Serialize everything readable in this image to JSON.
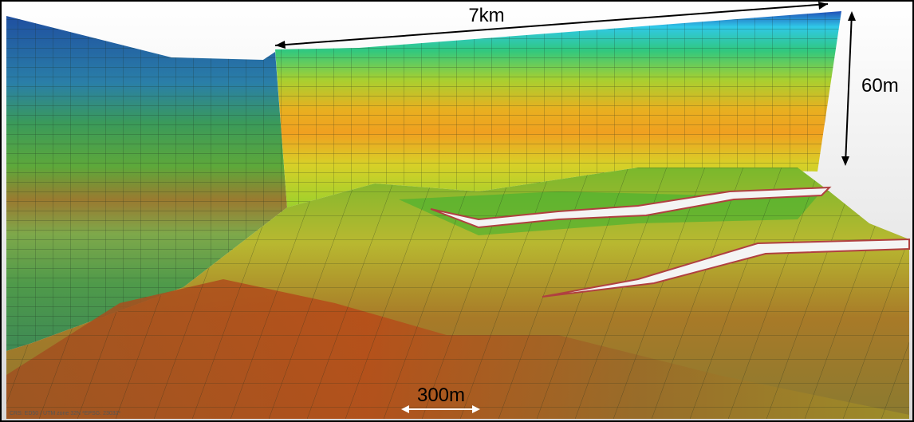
{
  "annotations": {
    "length": "7km",
    "height": "60m",
    "cell_size": "300m"
  },
  "crs": "CRS: ED50 / UTM zone 32N *EPSG: 23032*"
}
